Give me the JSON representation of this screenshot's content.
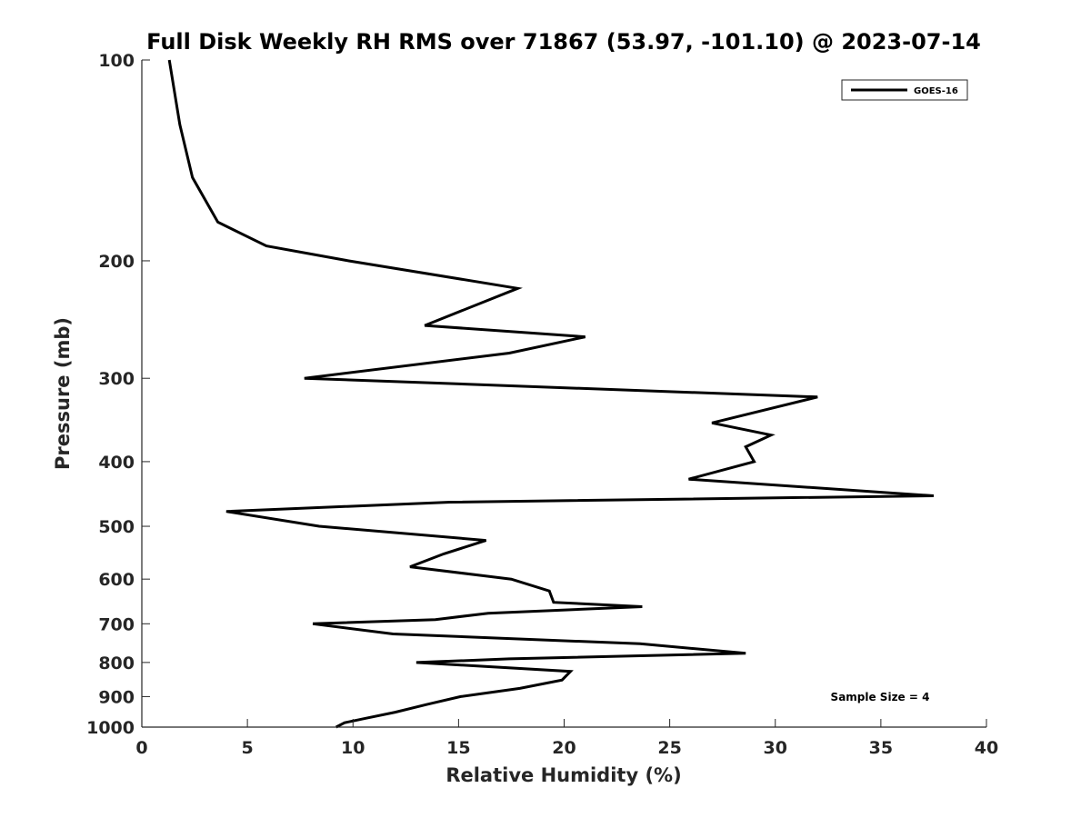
{
  "chart_data": {
    "type": "line",
    "title": "Full Disk Weekly RH RMS over 71867 (53.97, -101.10) @ 2023-07-14",
    "xlabel": "Relative Humidity (%)",
    "ylabel": "Pressure (mb)",
    "xlim": [
      0,
      40
    ],
    "ylim": [
      100,
      1000
    ],
    "yscale": "log",
    "yreversed": true,
    "grid": false,
    "legend_position": "top-right",
    "xticks": [
      0,
      5,
      10,
      15,
      20,
      25,
      30,
      35,
      40
    ],
    "xtick_labels": [
      "0",
      "5",
      "10",
      "15",
      "20",
      "25",
      "30",
      "35",
      "40"
    ],
    "yticks": [
      100,
      200,
      300,
      400,
      500,
      600,
      700,
      800,
      900,
      1000
    ],
    "ytick_labels": [
      "100",
      "200",
      "300",
      "400",
      "500",
      "600",
      "700",
      "800",
      "900",
      "1000"
    ],
    "annotation": "Sample Size = 4",
    "series": [
      {
        "name": "GOES-16",
        "color": "#000000",
        "points": [
          [
            1.3,
            100
          ],
          [
            1.8,
            125
          ],
          [
            2.4,
            150
          ],
          [
            3.6,
            175
          ],
          [
            5.9,
            190
          ],
          [
            9.8,
            200
          ],
          [
            17.8,
            220
          ],
          [
            13.4,
            250
          ],
          [
            21.0,
            260
          ],
          [
            17.4,
            275
          ],
          [
            7.7,
            300
          ],
          [
            32.0,
            320
          ],
          [
            27.0,
            350
          ],
          [
            29.8,
            365
          ],
          [
            28.6,
            380
          ],
          [
            29.0,
            400
          ],
          [
            25.9,
            425
          ],
          [
            37.5,
            450
          ],
          [
            14.6,
            460
          ],
          [
            4.0,
            475
          ],
          [
            8.4,
            500
          ],
          [
            16.3,
            525
          ],
          [
            14.3,
            550
          ],
          [
            12.7,
            575
          ],
          [
            17.5,
            600
          ],
          [
            19.3,
            625
          ],
          [
            19.5,
            650
          ],
          [
            23.7,
            660
          ],
          [
            16.4,
            675
          ],
          [
            13.9,
            690
          ],
          [
            8.1,
            700
          ],
          [
            11.9,
            725
          ],
          [
            23.6,
            750
          ],
          [
            28.6,
            775
          ],
          [
            17.4,
            790
          ],
          [
            13.0,
            800
          ],
          [
            20.3,
            825
          ],
          [
            19.9,
            850
          ],
          [
            17.9,
            875
          ],
          [
            15.1,
            900
          ],
          [
            13.5,
            925
          ],
          [
            12.0,
            950
          ],
          [
            10.6,
            970
          ],
          [
            9.6,
            985
          ],
          [
            9.2,
            1000
          ]
        ]
      }
    ]
  }
}
